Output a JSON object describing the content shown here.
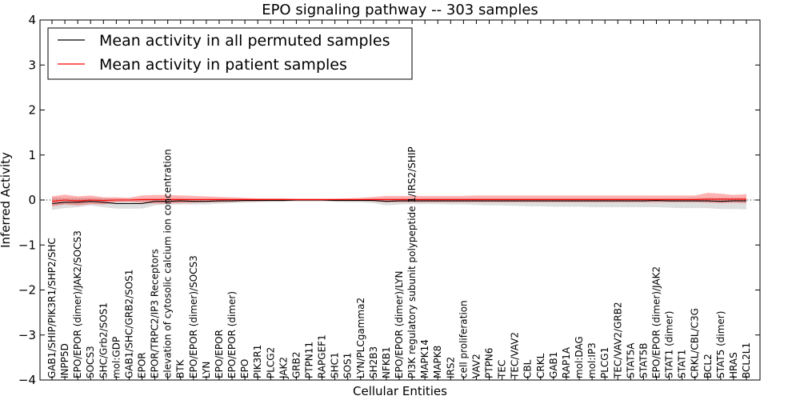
{
  "chart_data": {
    "type": "line",
    "title": "EPO signaling pathway -- 303 samples",
    "xlabel": "Cellular Entities",
    "ylabel": "Inferred Activity",
    "ylim": [
      -4,
      4
    ],
    "yticks": [
      4,
      3,
      2,
      1,
      0,
      -1,
      -2,
      -3,
      -4
    ],
    "ytick_labels": [
      "4",
      "3",
      "2",
      "1",
      "0",
      "−1",
      "−2",
      "−3",
      "−4"
    ],
    "legend": {
      "placement": "top-left",
      "entries": [
        {
          "label": "Mean activity in all permuted samples",
          "color": "#000000"
        },
        {
          "label": "Mean activity in patient samples",
          "color": "#ff0000"
        }
      ]
    },
    "categories": [
      "GAB1/SHIP/PIK3R1/SHP2/SHC",
      "INPP5D",
      "EPO/EPOR (dimer)/JAK2/SOCS3",
      "SOCS3",
      "SHC/Grb2/SOS1",
      "mol:GDP",
      "GAB1/SHC/GRB2/SOS1",
      "EPOR",
      "EPOR/TRPC2/IP3 Receptors",
      "elevation of cytosolic calcium ion concentration",
      "BTK",
      "EPO/EPOR (dimer)/SOCS3",
      "LYN",
      "EPO/EPOR",
      "EPO/EPOR (dimer)",
      "EPO",
      "PIK3R1",
      "PLCG2",
      "JAK2",
      "GRB2",
      "PTPN11",
      "RAPGEF1",
      "SHC1",
      "SOS1",
      "LYN/PLCgamma2",
      "SH2B3",
      "NFKB1",
      "EPO/EPOR (dimer)/LYN",
      "PI3K regulatory subunit polypeptide 1/IRS2/SHIP",
      "MAPK14",
      "MAPK8",
      "IRS2",
      "cell proliferation",
      "VAV2",
      "PTPN6",
      "TEC",
      "TEC/VAV2",
      "CBL",
      "CRKL",
      "GAB1",
      "RAP1A",
      "mol:DAG",
      "mol:IP3",
      "PLCG1",
      "TEC/VAV2/GRB2",
      "STAT5A",
      "STAT5B",
      "EPO/EPOR (dimer)/JAK2",
      "STAT1 (dimer)",
      "STAT1",
      "CRKL/CBL/C3G",
      "BCL2",
      "STAT5 (dimer)",
      "HRAS",
      "BCL2L1"
    ],
    "series": [
      {
        "name": "Mean activity in all permuted samples",
        "color": "#000000",
        "values": [
          -0.08,
          -0.05,
          -0.05,
          -0.03,
          -0.05,
          -0.08,
          -0.08,
          -0.08,
          -0.03,
          -0.03,
          -0.02,
          -0.03,
          -0.03,
          -0.02,
          -0.02,
          -0.01,
          -0.01,
          -0.01,
          -0.01,
          0,
          0,
          0,
          -0.01,
          -0.01,
          -0.01,
          -0.01,
          -0.03,
          -0.02,
          -0.02,
          -0.02,
          -0.02,
          -0.02,
          -0.02,
          -0.02,
          -0.02,
          -0.02,
          -0.02,
          -0.02,
          -0.02,
          -0.02,
          -0.02,
          -0.02,
          -0.02,
          -0.02,
          -0.02,
          -0.02,
          -0.02,
          -0.01,
          -0.02,
          -0.02,
          -0.02,
          -0.02,
          -0.03,
          -0.02,
          -0.02
        ],
        "band_low": [
          -0.22,
          -0.18,
          -0.16,
          -0.12,
          -0.16,
          -0.19,
          -0.19,
          -0.19,
          -0.12,
          -0.1,
          -0.1,
          -0.1,
          -0.1,
          -0.08,
          -0.07,
          -0.06,
          -0.05,
          -0.04,
          -0.04,
          -0.03,
          -0.03,
          -0.03,
          -0.04,
          -0.05,
          -0.05,
          -0.07,
          -0.12,
          -0.1,
          -0.09,
          -0.09,
          -0.09,
          -0.1,
          -0.1,
          -0.11,
          -0.12,
          -0.12,
          -0.13,
          -0.14,
          -0.14,
          -0.15,
          -0.15,
          -0.15,
          -0.16,
          -0.16,
          -0.16,
          -0.16,
          -0.16,
          -0.16,
          -0.17,
          -0.18,
          -0.18,
          -0.18,
          -0.2,
          -0.2,
          -0.21
        ],
        "band_high": [
          0.06,
          0.05,
          0.05,
          0.05,
          0.04,
          0.03,
          0.03,
          0.03,
          0.04,
          0.04,
          0.04,
          0.03,
          0.03,
          0.03,
          0.03,
          0.03,
          0.02,
          0.02,
          0.02,
          0.02,
          0.02,
          0.02,
          0.02,
          0.02,
          0.02,
          0.03,
          0.04,
          0.04,
          0.04,
          0.04,
          0.04,
          0.04,
          0.04,
          0.04,
          0.04,
          0.04,
          0.04,
          0.04,
          0.04,
          0.04,
          0.04,
          0.04,
          0.04,
          0.04,
          0.04,
          0.04,
          0.04,
          0.04,
          0.04,
          0.04,
          0.05,
          0.05,
          0.05,
          0.05,
          0.05
        ]
      },
      {
        "name": "Mean activity in patient samples",
        "color": "#ff0000",
        "values": [
          -0.03,
          0,
          -0.02,
          0,
          -0.01,
          0,
          0,
          0.01,
          0.01,
          0.01,
          0.01,
          0.01,
          0.01,
          0.01,
          0.01,
          0.01,
          0.01,
          0.01,
          0.01,
          0.01,
          0.01,
          0.01,
          0.01,
          0.01,
          0.01,
          0.01,
          0.01,
          0.01,
          0.01,
          0.01,
          0.01,
          0.01,
          0.01,
          0.01,
          0.01,
          0.01,
          0.01,
          0.01,
          0.01,
          0.01,
          0.01,
          0.01,
          0.01,
          0.01,
          0.01,
          0.01,
          0.01,
          0.01,
          0.01,
          0.01,
          0.01,
          0.02,
          0.02,
          0.02,
          0.02
        ],
        "band_low": [
          -0.14,
          -0.1,
          -0.12,
          -0.09,
          -0.1,
          -0.05,
          -0.04,
          -0.06,
          -0.08,
          -0.08,
          -0.07,
          -0.06,
          -0.05,
          -0.05,
          -0.04,
          -0.03,
          -0.03,
          -0.02,
          -0.02,
          -0.02,
          -0.02,
          -0.02,
          -0.02,
          -0.02,
          -0.02,
          -0.03,
          -0.05,
          -0.05,
          -0.05,
          -0.05,
          -0.05,
          -0.05,
          -0.05,
          -0.05,
          -0.05,
          -0.05,
          -0.05,
          -0.05,
          -0.05,
          -0.05,
          -0.05,
          -0.05,
          -0.05,
          -0.05,
          -0.05,
          -0.05,
          -0.05,
          -0.05,
          -0.05,
          -0.05,
          -0.05,
          -0.06,
          -0.07,
          -0.06,
          -0.07
        ],
        "band_high": [
          0.08,
          0.12,
          0.08,
          0.1,
          0.06,
          0.06,
          0.05,
          0.1,
          0.11,
          0.11,
          0.1,
          0.09,
          0.08,
          0.07,
          0.06,
          0.05,
          0.04,
          0.04,
          0.04,
          0.03,
          0.03,
          0.03,
          0.03,
          0.04,
          0.05,
          0.07,
          0.09,
          0.09,
          0.09,
          0.09,
          0.09,
          0.09,
          0.09,
          0.1,
          0.1,
          0.1,
          0.1,
          0.1,
          0.1,
          0.1,
          0.1,
          0.1,
          0.1,
          0.1,
          0.1,
          0.1,
          0.1,
          0.1,
          0.1,
          0.1,
          0.1,
          0.16,
          0.14,
          0.11,
          0.13
        ]
      }
    ]
  }
}
